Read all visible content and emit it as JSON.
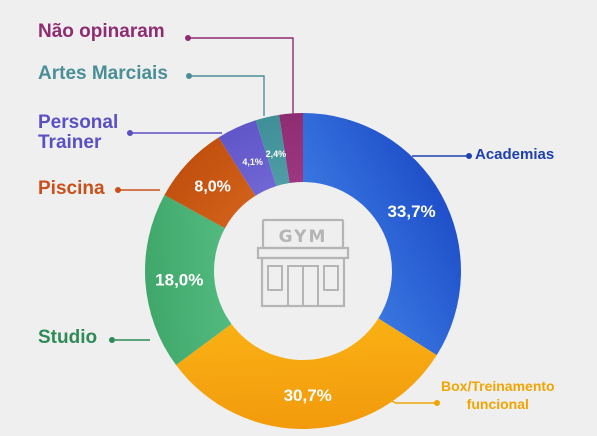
{
  "chart_data": {
    "type": "pie",
    "variant": "donut",
    "center_icon": "gym-building-icon",
    "center_icon_text": "GYM",
    "slices": [
      {
        "name": "Academias",
        "value": 33.7,
        "label": "33,7%",
        "color": "#1f4fc9",
        "color_light": "#4a90f0",
        "label_color": "#1e40af",
        "ext_label_lines": [
          "Academias"
        ]
      },
      {
        "name": "Box/Treinamento funcional",
        "value": 30.7,
        "label": "30,7%",
        "color": "#f29a0c",
        "color_light": "#ffc21a",
        "label_color": "#f0a500",
        "ext_label_lines": [
          "Box/Treinamento",
          "funcional"
        ]
      },
      {
        "name": "Studio",
        "value": 18.0,
        "label": "18,0%",
        "color": "#3fa76a",
        "color_light": "#6dd39a",
        "label_color": "#2e8b57",
        "ext_label_lines": [
          "Studio"
        ]
      },
      {
        "name": "Piscina",
        "value": 8.0,
        "label": "8,0%",
        "color": "#c2500e",
        "color_light": "#e87a2c",
        "label_color": "#c8501a",
        "ext_label_lines": [
          "Piscina"
        ]
      },
      {
        "name": "Personal Trainer",
        "value": 4.1,
        "label": "4,1%",
        "color": "#6156c9",
        "color_light": "#8a80e6",
        "label_color": "#5b4fc4",
        "ext_label_lines": [
          "Personal",
          "Trainer"
        ]
      },
      {
        "name": "Artes Marciais",
        "value": 2.4,
        "label": "2,4%",
        "color": "#3f8f98",
        "color_light": "#6ab5bc",
        "label_color": "#4a8f96",
        "ext_label_lines": [
          "Artes Marciais"
        ]
      },
      {
        "name": "Não opinaram",
        "value": 2.4,
        "label": "",
        "color": "#8e2c72",
        "color_light": "#b54a98",
        "label_color": "#8e2c72",
        "ext_label_lines": [
          "Não opinaram"
        ]
      }
    ]
  }
}
